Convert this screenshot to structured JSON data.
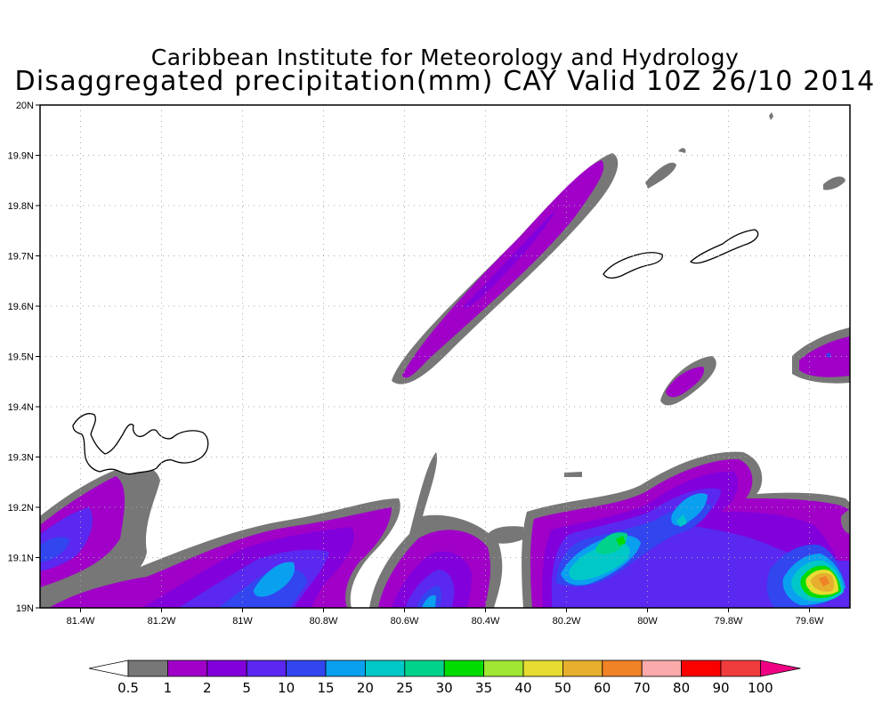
{
  "header": {
    "title": "Caribbean Institute for Meteorology and Hydrology",
    "subtitle": "Disaggregated precipitation(mm) CAY Valid 10Z 26/10 2014"
  },
  "map": {
    "lon_range": [
      -81.5,
      -79.5
    ],
    "lat_range": [
      19.0,
      20.0
    ],
    "grid": true,
    "x_ticks": [
      {
        "value": -81.4,
        "label": "81.4W"
      },
      {
        "value": -81.2,
        "label": "81.2W"
      },
      {
        "value": -81.0,
        "label": "81W"
      },
      {
        "value": -80.8,
        "label": "80.8W"
      },
      {
        "value": -80.6,
        "label": "80.6W"
      },
      {
        "value": -80.4,
        "label": "80.4W"
      },
      {
        "value": -80.2,
        "label": "80.2W"
      },
      {
        "value": -80.0,
        "label": "80W"
      },
      {
        "value": -79.8,
        "label": "79.8W"
      },
      {
        "value": -79.6,
        "label": "79.6W"
      }
    ],
    "y_ticks": [
      {
        "value": 19.0,
        "label": "19N"
      },
      {
        "value": 19.1,
        "label": "19.1N"
      },
      {
        "value": 19.2,
        "label": "19.2N"
      },
      {
        "value": 19.3,
        "label": "19.3N"
      },
      {
        "value": 19.4,
        "label": "19.4N"
      },
      {
        "value": 19.5,
        "label": "19.5N"
      },
      {
        "value": 19.6,
        "label": "19.6N"
      },
      {
        "value": 19.7,
        "label": "19.7N"
      },
      {
        "value": 19.8,
        "label": "19.8N"
      },
      {
        "value": 19.9,
        "label": "19.9N"
      },
      {
        "value": 20.0,
        "label": "20N"
      }
    ]
  },
  "legend": {
    "labels": [
      "0.5",
      "1",
      "2",
      "5",
      "10",
      "15",
      "20",
      "25",
      "30",
      "35",
      "40",
      "50",
      "60",
      "70",
      "80",
      "90",
      "100"
    ],
    "colors": [
      "#777777",
      "#a000c8",
      "#8200dc",
      "#5a28f0",
      "#3246f0",
      "#0aa0f0",
      "#00c8c8",
      "#00d28c",
      "#00dc00",
      "#a0e632",
      "#e6dc32",
      "#e6af2d",
      "#f08228",
      "#faaaaa",
      "#fa0000",
      "#f03c3c",
      "#f00082"
    ]
  }
}
